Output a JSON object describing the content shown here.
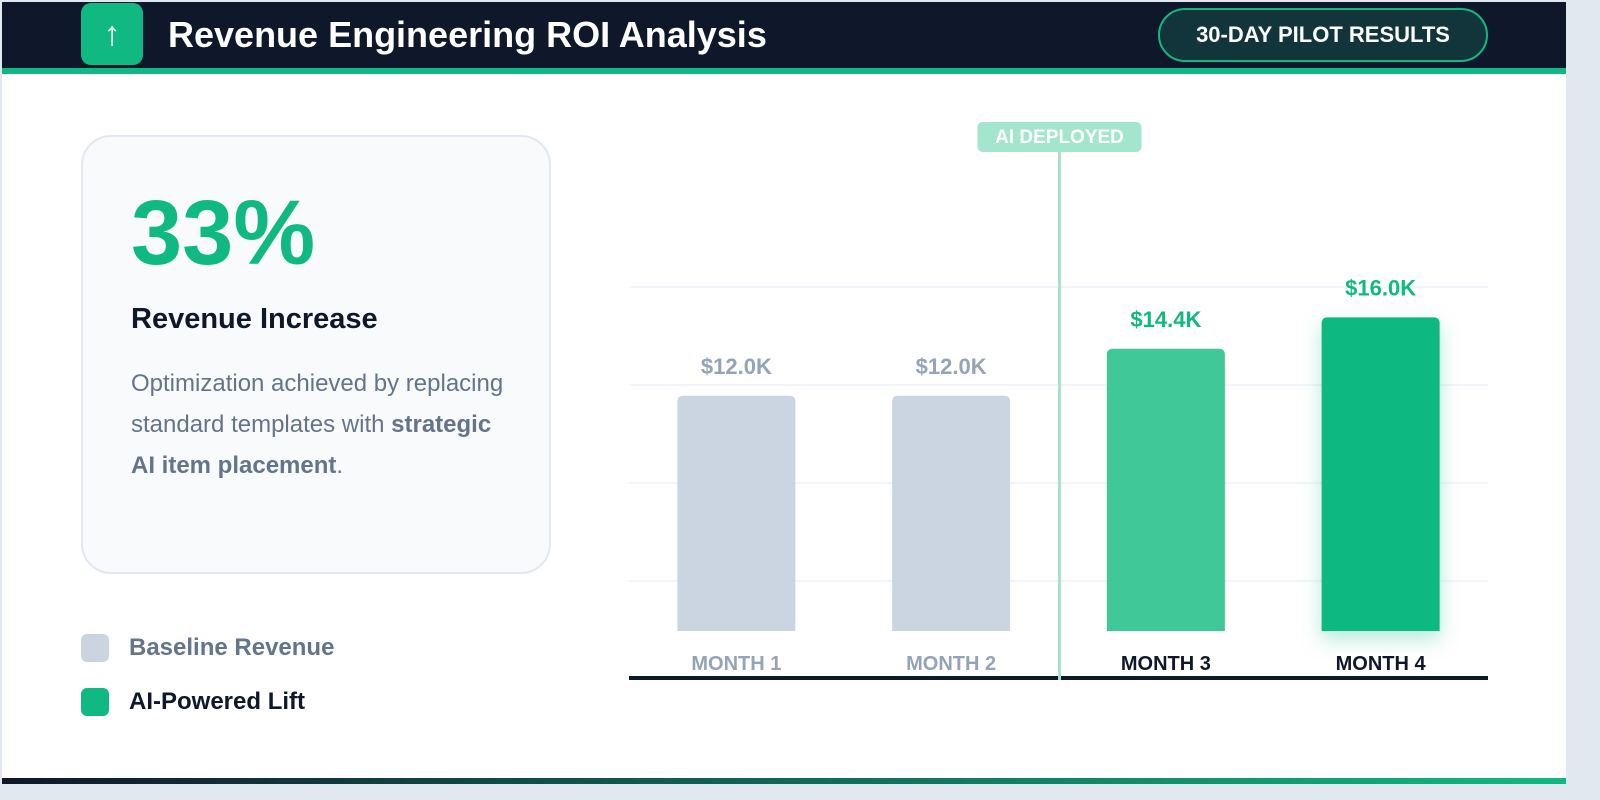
{
  "header": {
    "icon": "arrow-up-icon",
    "title": "Revenue Engineering ROI Analysis",
    "badge": "30-DAY PILOT RESULTS"
  },
  "card": {
    "metric": "33%",
    "label": "Revenue Increase",
    "desc_start": "Optimization achieved by replacing standard templates with ",
    "desc_bold": "strategic AI item placement",
    "desc_end": "."
  },
  "legend": [
    {
      "label": "Baseline Revenue",
      "color": "#cbd5e1"
    },
    {
      "label": "AI-Powered Lift",
      "color": "#10b981"
    }
  ],
  "chart_data": {
    "type": "bar",
    "categories": [
      "MONTH 1",
      "MONTH 2",
      "MONTH 3",
      "MONTH 4"
    ],
    "values": [
      12.0,
      12.0,
      14.4,
      16.0
    ],
    "data_labels": [
      "$12.0K",
      "$12.0K",
      "$14.4K",
      "$16.0K"
    ],
    "colors": [
      "#cbd5e1",
      "#cbd5e1",
      "#40c898",
      "#10b981"
    ],
    "label_colors": [
      "#94a3b8",
      "#94a3b8",
      "#10b981",
      "#10b981"
    ],
    "tick_colors": [
      "#94a3b8",
      "#94a3b8",
      "#0f172a",
      "#0f172a"
    ],
    "unit": "$K",
    "ylim": [
      0,
      16
    ],
    "grid": true,
    "annotation": {
      "label": "AI DEPLOYED",
      "between": [
        "MONTH 2",
        "MONTH 3"
      ]
    }
  }
}
